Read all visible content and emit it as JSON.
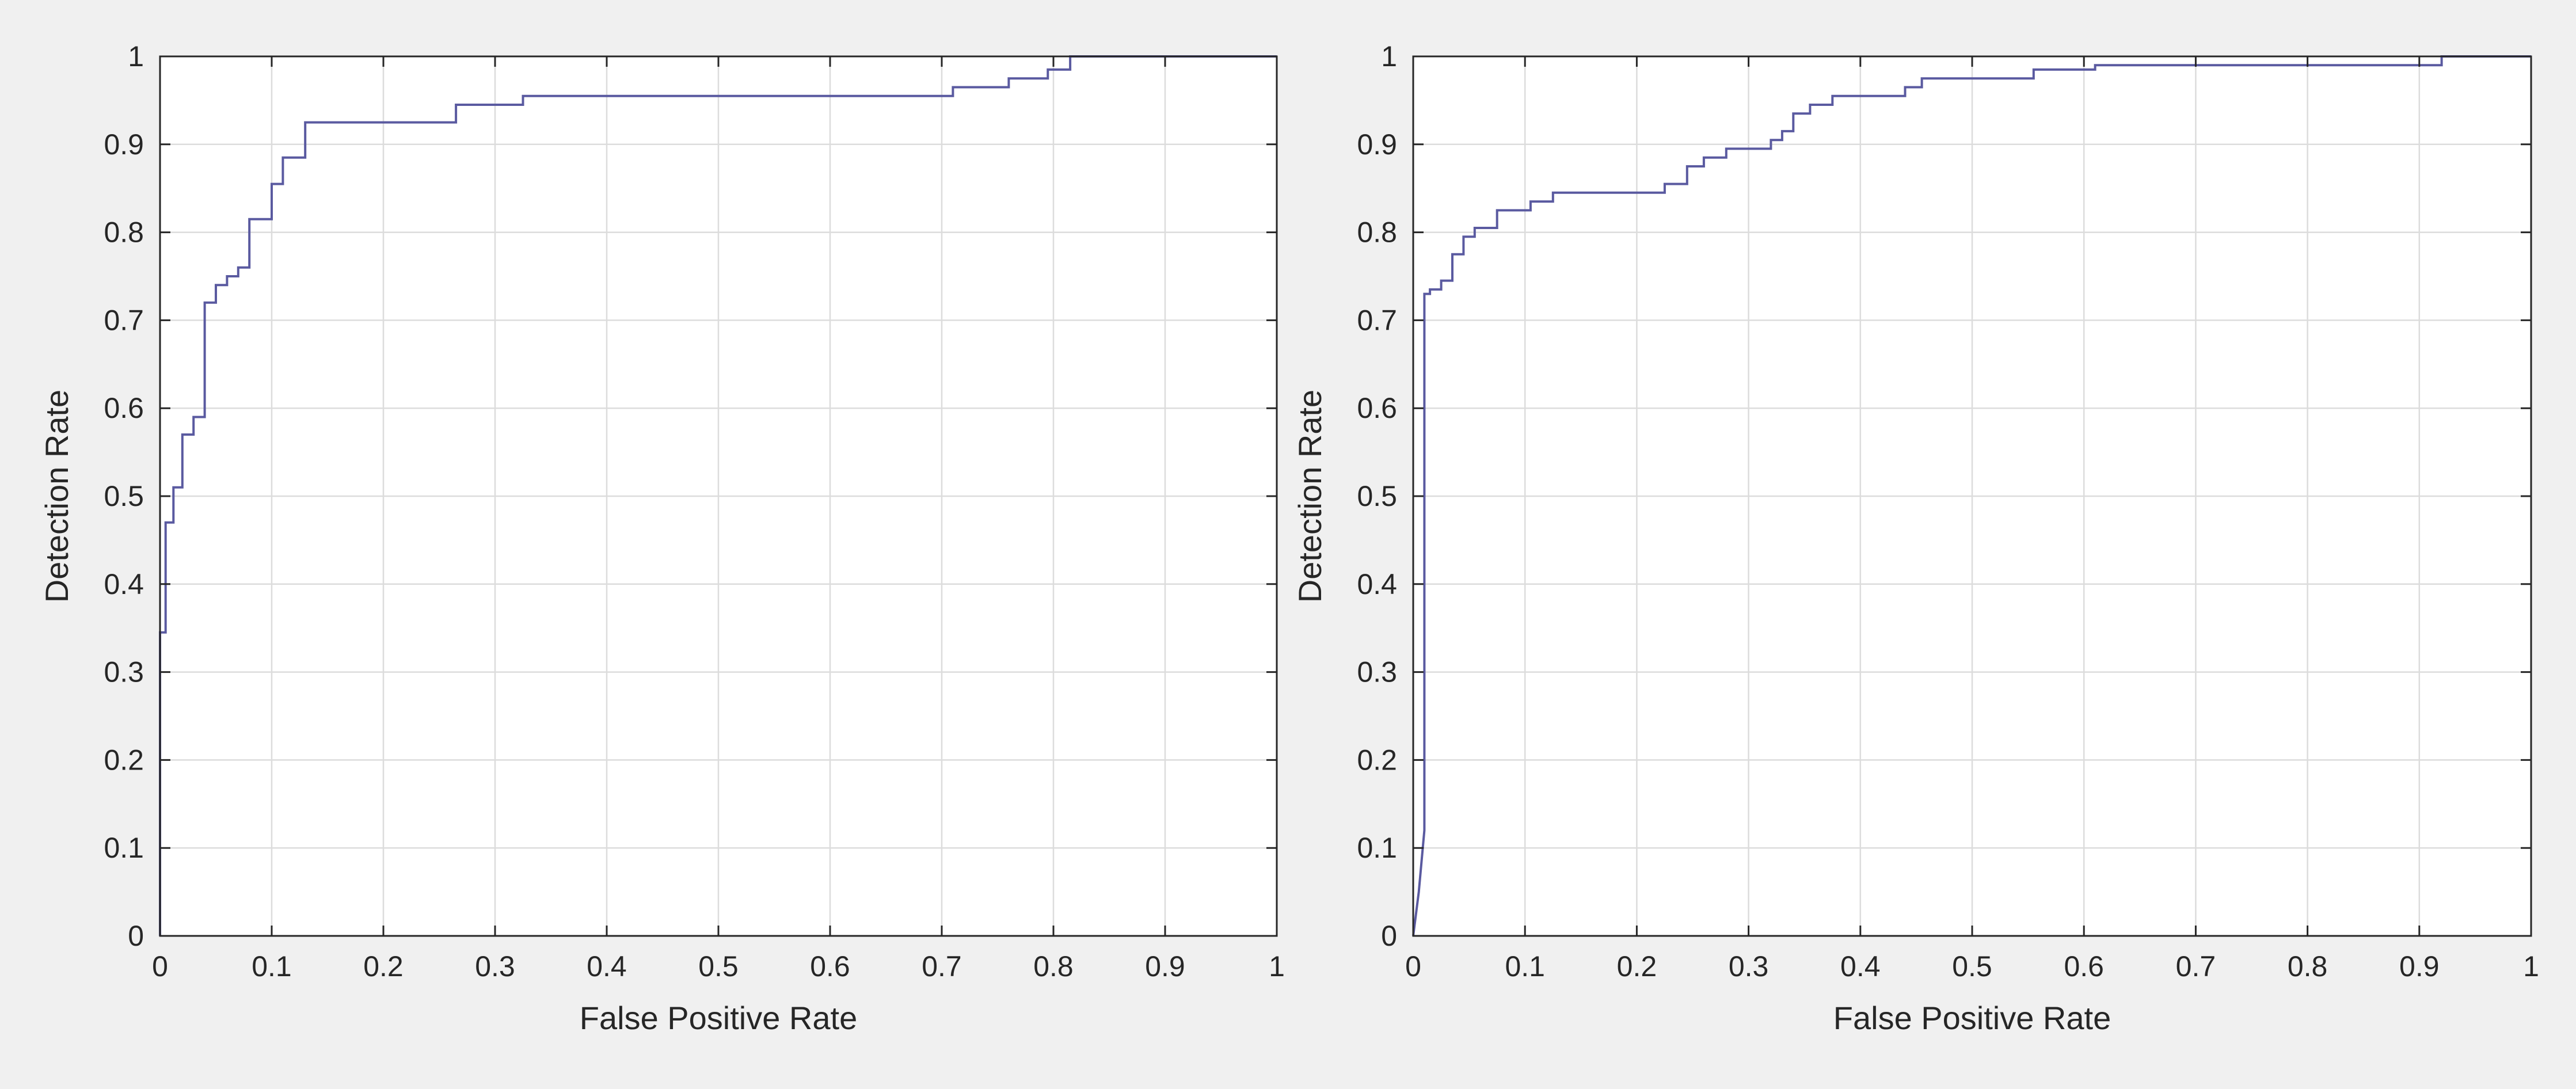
{
  "colors": {
    "background": "#f0f0f0",
    "axes_background": "#ffffff",
    "grid": "#dcdcdc",
    "axis": "#262626",
    "line": "#5a5aa0"
  },
  "chart_data": [
    {
      "type": "line",
      "xlabel": "False Positive Rate",
      "ylabel": "Detection Rate",
      "xlim": [
        0,
        1
      ],
      "ylim": [
        0,
        1
      ],
      "xticks": [
        "0",
        "0.1",
        "0.2",
        "0.3",
        "0.4",
        "0.5",
        "0.6",
        "0.7",
        "0.8",
        "0.9",
        "1"
      ],
      "yticks": [
        "0",
        "0.1",
        "0.2",
        "0.3",
        "0.4",
        "0.5",
        "0.6",
        "0.7",
        "0.8",
        "0.9",
        "1"
      ],
      "grid": true,
      "series": [
        {
          "x": [
            0,
            0,
            0.005,
            0.005,
            0.012,
            0.012,
            0.02,
            0.02,
            0.03,
            0.03,
            0.04,
            0.04,
            0.05,
            0.05,
            0.06,
            0.06,
            0.07,
            0.07,
            0.08,
            0.08,
            0.1,
            0.1,
            0.11,
            0.11,
            0.13,
            0.13,
            0.265,
            0.265,
            0.325,
            0.325,
            0.71,
            0.71,
            0.76,
            0.76,
            0.795,
            0.795,
            0.815,
            0.815,
            1
          ],
          "y": [
            0,
            0.345,
            0.345,
            0.47,
            0.47,
            0.51,
            0.51,
            0.57,
            0.57,
            0.59,
            0.59,
            0.72,
            0.72,
            0.74,
            0.74,
            0.75,
            0.75,
            0.76,
            0.76,
            0.815,
            0.815,
            0.855,
            0.855,
            0.885,
            0.885,
            0.925,
            0.925,
            0.945,
            0.945,
            0.955,
            0.955,
            0.965,
            0.965,
            0.975,
            0.975,
            0.985,
            0.985,
            1,
            1
          ]
        }
      ]
    },
    {
      "type": "line",
      "xlabel": "False Positive Rate",
      "ylabel": "Detection Rate",
      "xlim": [
        0,
        1
      ],
      "ylim": [
        0,
        1
      ],
      "xticks": [
        "0",
        "0.1",
        "0.2",
        "0.3",
        "0.4",
        "0.5",
        "0.6",
        "0.7",
        "0.8",
        "0.9",
        "1"
      ],
      "yticks": [
        "0",
        "0.1",
        "0.2",
        "0.3",
        "0.4",
        "0.5",
        "0.6",
        "0.7",
        "0.8",
        "0.9",
        "1"
      ],
      "grid": true,
      "series": [
        {
          "x": [
            0,
            0.005,
            0.01,
            0.01,
            0.015,
            0.015,
            0.025,
            0.025,
            0.035,
            0.035,
            0.045,
            0.045,
            0.055,
            0.055,
            0.075,
            0.075,
            0.105,
            0.105,
            0.125,
            0.125,
            0.225,
            0.225,
            0.245,
            0.245,
            0.26,
            0.26,
            0.28,
            0.28,
            0.32,
            0.32,
            0.33,
            0.33,
            0.34,
            0.34,
            0.355,
            0.355,
            0.375,
            0.375,
            0.44,
            0.44,
            0.455,
            0.455,
            0.555,
            0.555,
            0.61,
            0.61,
            0.92,
            0.92,
            1
          ],
          "y": [
            0,
            0.05,
            0.12,
            0.73,
            0.73,
            0.735,
            0.735,
            0.745,
            0.745,
            0.775,
            0.775,
            0.795,
            0.795,
            0.805,
            0.805,
            0.825,
            0.825,
            0.835,
            0.835,
            0.845,
            0.845,
            0.855,
            0.855,
            0.875,
            0.875,
            0.885,
            0.885,
            0.895,
            0.895,
            0.905,
            0.905,
            0.915,
            0.915,
            0.935,
            0.935,
            0.945,
            0.945,
            0.955,
            0.955,
            0.965,
            0.965,
            0.975,
            0.975,
            0.985,
            0.985,
            0.99,
            0.99,
            1,
            1
          ]
        }
      ]
    }
  ]
}
